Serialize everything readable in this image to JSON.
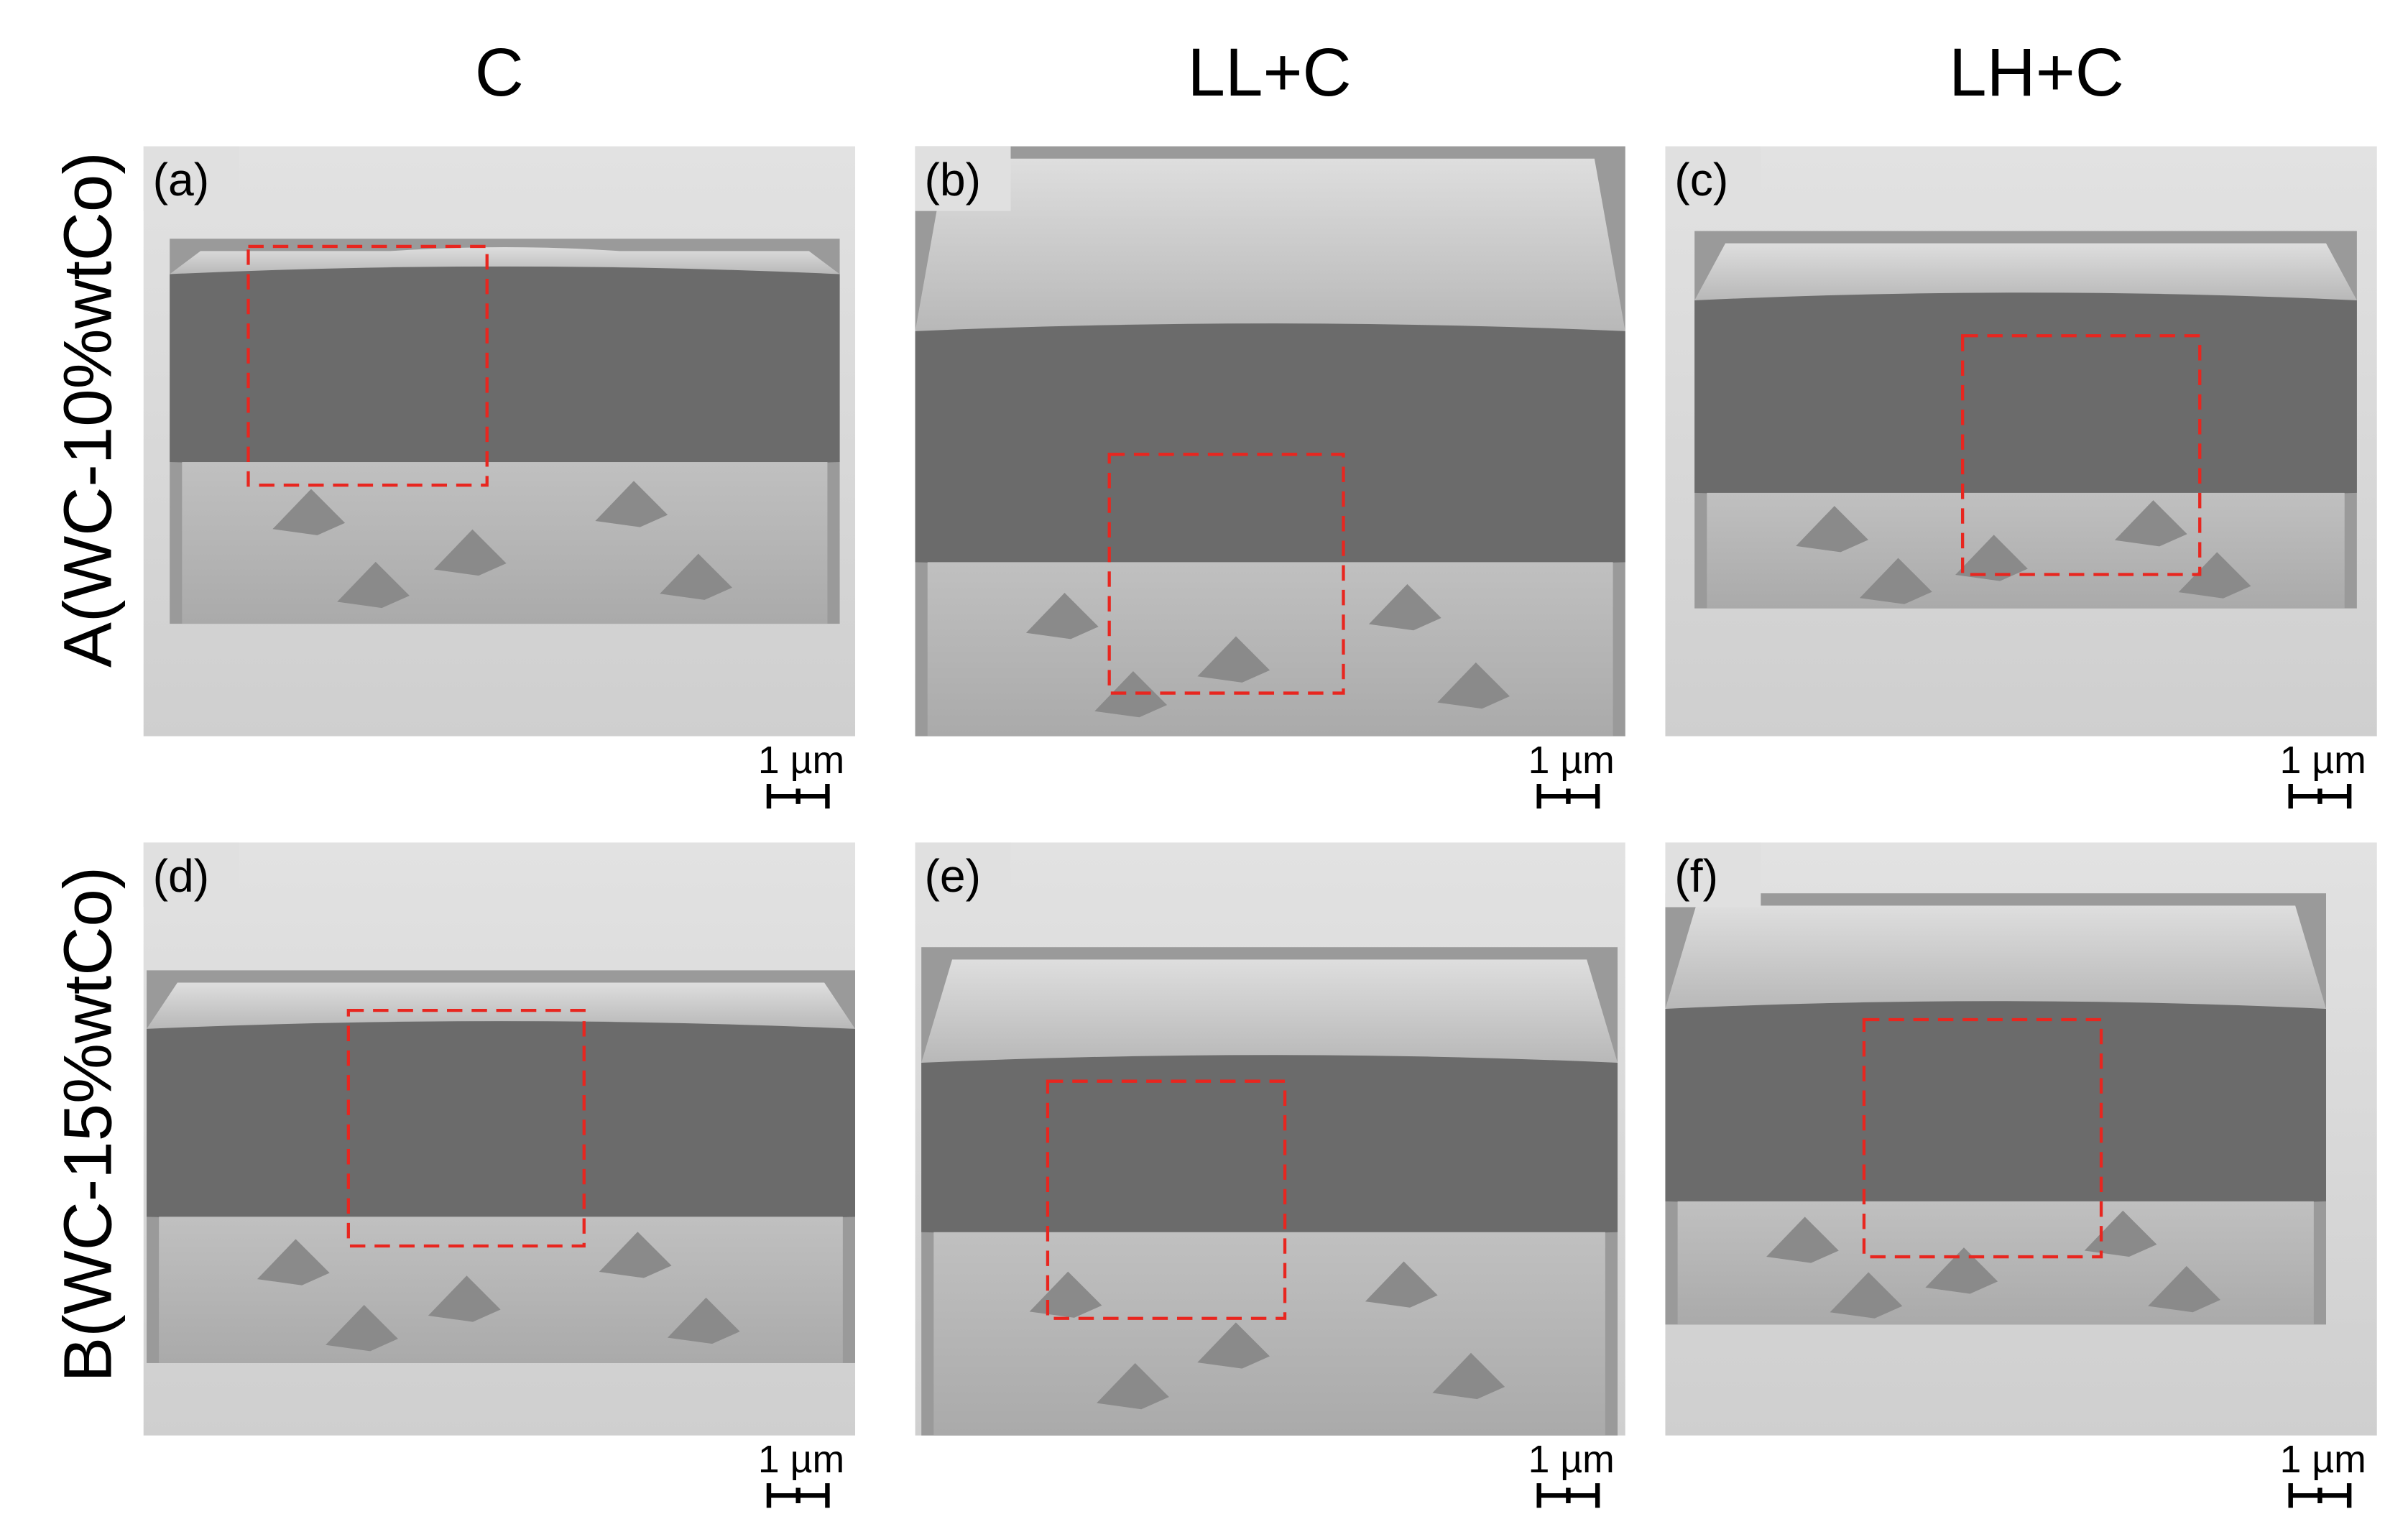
{
  "columns": [
    "C",
    "LL+C",
    "LH+C"
  ],
  "rows": [
    "A(WC-10%wtCo)",
    "B(WC-15%wtCo)"
  ],
  "panels": [
    {
      "label": "(a)",
      "scale": "1 µm"
    },
    {
      "label": "(b)",
      "scale": "1 µm"
    },
    {
      "label": "(c)",
      "scale": "1 µm"
    },
    {
      "label": "(d)",
      "scale": "1 µm"
    },
    {
      "label": "(e)",
      "scale": "1 µm"
    },
    {
      "label": "(f)",
      "scale": "1 µm"
    }
  ]
}
